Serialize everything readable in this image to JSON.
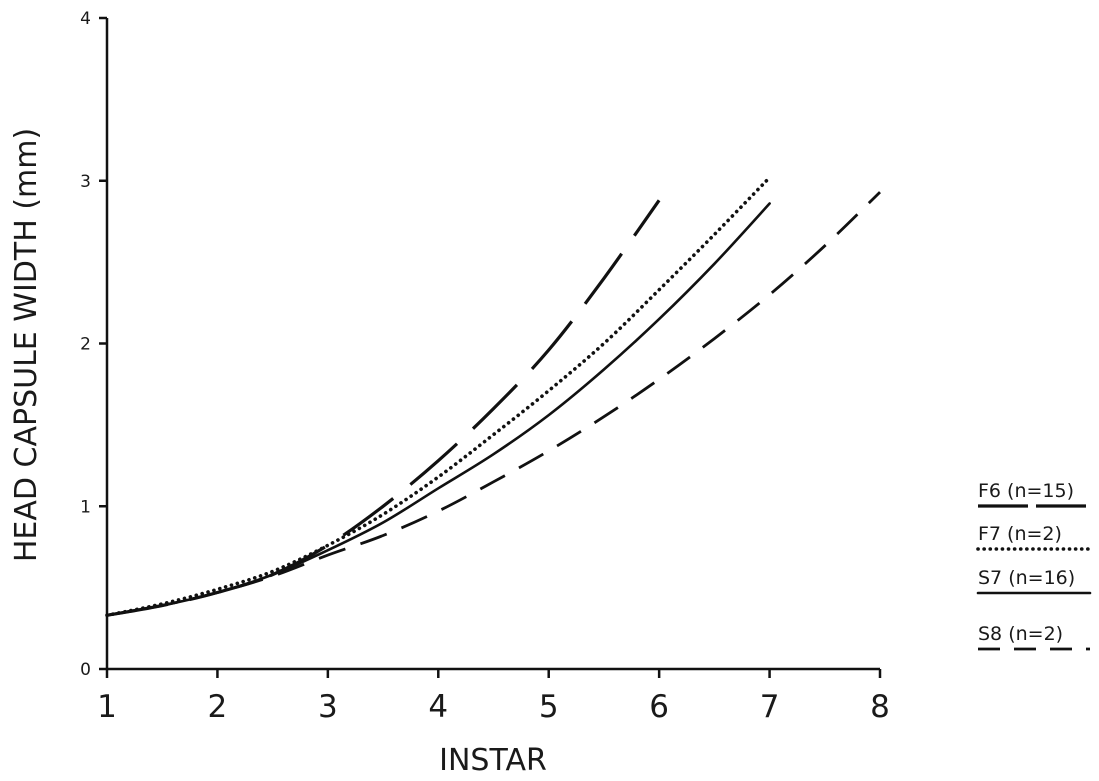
{
  "chart_data": {
    "type": "line",
    "title": "",
    "xlabel": "INSTAR",
    "ylabel": "HEAD CAPSULE WIDTH (mm)",
    "xlim": [
      1,
      8
    ],
    "ylim": [
      0,
      4
    ],
    "x_ticks": [
      "1",
      "2",
      "3",
      "4",
      "5",
      "6",
      "7",
      "8"
    ],
    "y_ticks": [
      "0",
      "1",
      "2",
      "3",
      "4"
    ],
    "grid": false,
    "legend_position": "right",
    "series": [
      {
        "name": "F6 (n=15)",
        "style": "long-dash",
        "x": [
          1,
          1.5,
          2,
          2.5,
          3,
          3.5,
          4,
          4.5,
          5,
          5.5,
          6
        ],
        "y": [
          0.33,
          0.39,
          0.47,
          0.58,
          0.76,
          1.0,
          1.28,
          1.6,
          1.96,
          2.4,
          2.88
        ]
      },
      {
        "name": "F7 (n=2)",
        "style": "dotted",
        "x": [
          1,
          1.5,
          2,
          2.5,
          3,
          3.5,
          4,
          4.5,
          5,
          5.5,
          6,
          6.5,
          7
        ],
        "y": [
          0.33,
          0.4,
          0.49,
          0.6,
          0.76,
          0.95,
          1.18,
          1.44,
          1.71,
          2.0,
          2.33,
          2.67,
          3.02
        ]
      },
      {
        "name": "S7 (n=16)",
        "style": "solid",
        "x": [
          1,
          1.5,
          2,
          2.5,
          3,
          3.5,
          4,
          4.5,
          5,
          5.5,
          6,
          6.5,
          7
        ],
        "y": [
          0.33,
          0.39,
          0.47,
          0.58,
          0.73,
          0.9,
          1.11,
          1.32,
          1.56,
          1.84,
          2.15,
          2.49,
          2.86
        ]
      },
      {
        "name": "S8 (n=2)",
        "style": "short-dash",
        "x": [
          1,
          1.5,
          2,
          2.5,
          3,
          3.5,
          4,
          4.5,
          5,
          5.5,
          6,
          6.5,
          7,
          7.5,
          8
        ],
        "y": [
          0.33,
          0.39,
          0.47,
          0.57,
          0.7,
          0.82,
          0.97,
          1.15,
          1.34,
          1.55,
          1.78,
          2.03,
          2.3,
          2.6,
          2.93
        ]
      }
    ]
  }
}
